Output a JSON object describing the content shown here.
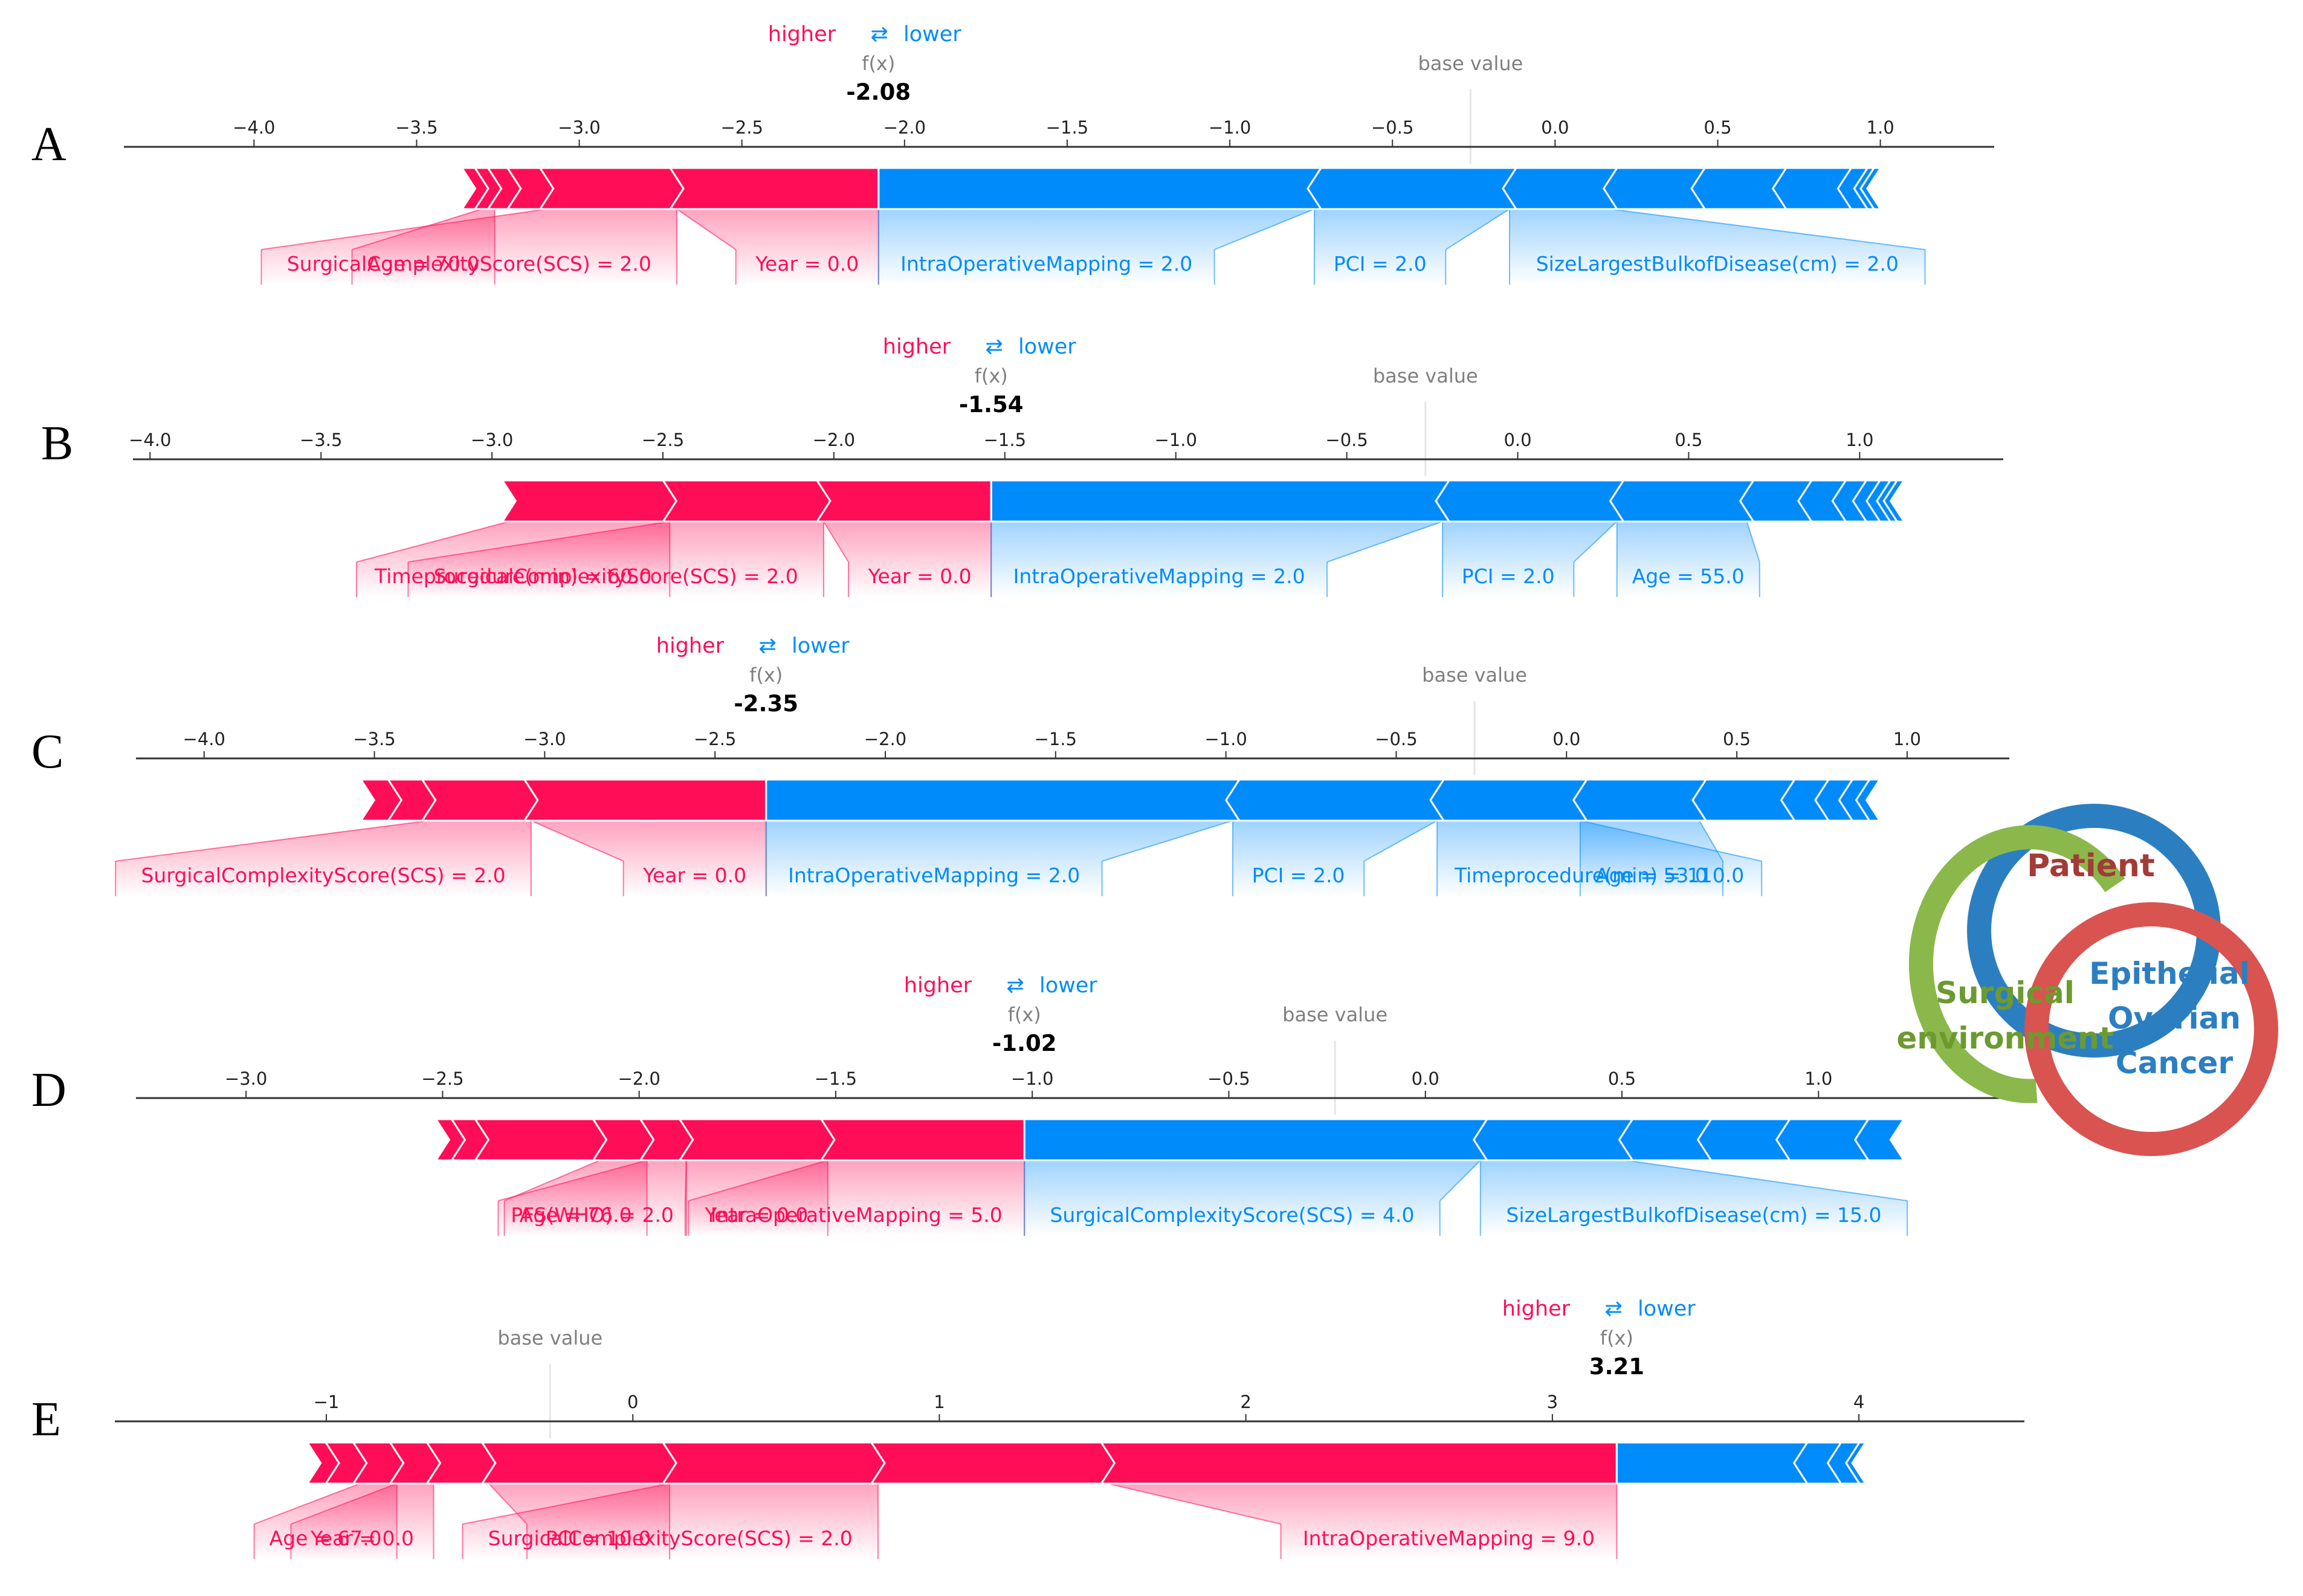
{
  "colors": {
    "higher": "#ff0d57",
    "lower": "#008bfb",
    "axis": "#333333",
    "muted": "#7f7f7f",
    "venn_patient": "#2b7fc1",
    "venn_surgical": "#8ab84a",
    "venn_cancer": "#d95350",
    "venn_patient_text": "#a33b37",
    "venn_surgical_text": "#6d9a2f",
    "venn_cancer_text": "#2b7fc1"
  },
  "legend": {
    "higher": "higher",
    "lower": "lower",
    "arrows": "⇄"
  },
  "labels": {
    "fx": "f(x)",
    "base_value": "base value"
  },
  "chart_data": [
    {
      "type": "force",
      "panel": "A",
      "fx_value": -2.08,
      "fx_text": "-2.08",
      "base_value": -0.26,
      "xlim": [
        -4.4,
        1.35
      ],
      "ticks": [
        -4.0,
        -3.5,
        -3.0,
        -2.5,
        -2.0,
        -1.5,
        -1.0,
        -0.5,
        0.0,
        0.5,
        1.0
      ],
      "tick_labels": [
        "−4.0",
        "−3.5",
        "−3.0",
        "−2.5",
        "−2.0",
        "−1.5",
        "−1.0",
        "−0.5",
        "0.0",
        "0.5",
        "1.0"
      ],
      "pos_breaks": [
        -3.34,
        -3.3,
        -3.26,
        -3.2,
        -3.1,
        -2.7,
        -2.08
      ],
      "neg_breaks": [
        -2.08,
        -0.74,
        -0.14,
        0.17,
        0.44,
        0.69,
        0.89,
        0.94,
        0.96,
        0.98
      ],
      "features": [
        {
          "label": "Age = 70.0",
          "side": "pos",
          "seg": [
            -3.3,
            -3.26
          ]
        },
        {
          "label": "SurgicalComplexityScore(SCS) = 2.0",
          "side": "pos",
          "seg": [
            -3.1,
            -2.7
          ]
        },
        {
          "label": "Year = 0.0",
          "side": "pos",
          "seg": [
            -2.7,
            -2.08
          ]
        },
        {
          "label": "IntraOperativeMapping = 2.0",
          "side": "neg",
          "seg": [
            -2.08,
            -0.74
          ]
        },
        {
          "label": "PCI = 2.0",
          "side": "neg",
          "seg": [
            -0.74,
            -0.14
          ]
        },
        {
          "label": "SizeLargestBulkofDisease(cm) = 2.0",
          "side": "neg",
          "seg": [
            -0.14,
            0.17
          ]
        }
      ]
    },
    {
      "type": "force",
      "panel": "B",
      "fx_value": -1.54,
      "fx_text": "-1.54",
      "base_value": -0.27,
      "xlim": [
        -4.05,
        1.42
      ],
      "ticks": [
        -4.0,
        -3.5,
        -3.0,
        -2.5,
        -2.0,
        -1.5,
        -1.0,
        -0.5,
        0.0,
        0.5,
        1.0
      ],
      "tick_labels": [
        "−4.0",
        "−3.5",
        "−3.0",
        "−2.5",
        "−2.0",
        "−1.5",
        "−1.0",
        "−0.5",
        "0.0",
        "0.5",
        "1.0"
      ],
      "pos_breaks": [
        -2.95,
        -2.48,
        -2.03,
        -1.54
      ],
      "neg_breaks": [
        -1.54,
        -0.22,
        0.29,
        0.67,
        0.84,
        0.94,
        1.0,
        1.04,
        1.07,
        1.09,
        1.11
      ],
      "features": [
        {
          "label": "Timeprocedure(min) = 60.0",
          "side": "pos",
          "seg": [
            -2.95,
            -2.48
          ]
        },
        {
          "label": "SurgicalComplexityScore(SCS) = 2.0",
          "side": "pos",
          "seg": [
            -2.48,
            -2.03
          ]
        },
        {
          "label": "Year = 0.0",
          "side": "pos",
          "seg": [
            -2.03,
            -1.54
          ]
        },
        {
          "label": "IntraOperativeMapping = 2.0",
          "side": "neg",
          "seg": [
            -1.54,
            -0.22
          ]
        },
        {
          "label": "PCI = 2.0",
          "side": "neg",
          "seg": [
            -0.22,
            0.29
          ]
        },
        {
          "label": "Age = 55.0",
          "side": "neg",
          "seg": [
            0.29,
            0.67
          ]
        }
      ]
    },
    {
      "type": "force",
      "panel": "C",
      "fx_value": -2.35,
      "fx_text": "-2.35",
      "base_value": -0.27,
      "xlim": [
        -4.2,
        1.3
      ],
      "ticks": [
        -4.0,
        -3.5,
        -3.0,
        -2.5,
        -2.0,
        -1.5,
        -1.0,
        -0.5,
        0.0,
        0.5,
        1.0
      ],
      "tick_labels": [
        "−4.0",
        "−3.5",
        "−3.0",
        "−2.5",
        "−2.0",
        "−1.5",
        "−1.0",
        "−0.5",
        "0.0",
        "0.5",
        "1.0"
      ],
      "pos_breaks": [
        -3.52,
        -3.44,
        -3.34,
        -3.04,
        -2.35
      ],
      "neg_breaks": [
        -2.35,
        -0.98,
        -0.38,
        0.04,
        0.39,
        0.65,
        0.75,
        0.82,
        0.87,
        0.9
      ],
      "features": [
        {
          "label": "SurgicalComplexityScore(SCS) = 2.0",
          "side": "pos",
          "seg": [
            -3.34,
            -3.04
          ]
        },
        {
          "label": "Year = 0.0",
          "side": "pos",
          "seg": [
            -3.04,
            -2.35
          ]
        },
        {
          "label": "IntraOperativeMapping = 2.0",
          "side": "neg",
          "seg": [
            -2.35,
            -0.98
          ]
        },
        {
          "label": "PCI = 2.0",
          "side": "neg",
          "seg": [
            -0.98,
            -0.38
          ]
        },
        {
          "label": "Timeprocedure(min) = 110.0",
          "side": "neg",
          "seg": [
            -0.38,
            0.04
          ]
        },
        {
          "label": "Age = 53.0",
          "side": "neg",
          "seg": [
            0.04,
            0.39
          ]
        }
      ]
    },
    {
      "type": "force",
      "panel": "D",
      "fx_value": -1.02,
      "fx_text": "-1.02",
      "base_value": -0.23,
      "xlim": [
        -3.28,
        1.47
      ],
      "ticks": [
        -3.0,
        -2.5,
        -2.0,
        -1.5,
        -1.0,
        -0.5,
        0.0,
        0.5,
        1.0
      ],
      "tick_labels": [
        "−3.0",
        "−2.5",
        "−2.0",
        "−1.5",
        "−1.0",
        "−0.5",
        "0.0",
        "0.5",
        "1.0"
      ],
      "pos_breaks": [
        -2.5,
        -2.46,
        -2.4,
        -2.1,
        -1.98,
        -1.88,
        -1.52,
        -1.02
      ],
      "neg_breaks": [
        -1.02,
        0.14,
        0.51,
        0.71,
        0.91,
        1.11,
        1.2
      ],
      "features": [
        {
          "label": "Age = 76.0",
          "side": "pos",
          "seg": [
            -2.1,
            -1.98
          ]
        },
        {
          "label": "PFS(WHO) = 2.0",
          "side": "pos",
          "seg": [
            -1.98,
            -1.88
          ]
        },
        {
          "label": "Year = 0.0",
          "side": "pos",
          "seg": [
            -1.88,
            -1.52
          ]
        },
        {
          "label": "IntraOperativeMapping = 5.0",
          "side": "pos",
          "seg": [
            -1.52,
            -1.02
          ]
        },
        {
          "label": "SurgicalComplexityScore(SCS) = 4.0",
          "side": "neg",
          "seg": [
            -1.02,
            0.14
          ]
        },
        {
          "label": "SizeLargestBulkofDisease(cm) = 15.0",
          "side": "neg",
          "seg": [
            0.14,
            0.51
          ]
        }
      ]
    },
    {
      "type": "force",
      "panel": "E",
      "fx_value": 3.21,
      "fx_text": "3.21",
      "base_value": -0.27,
      "xlim": [
        -1.69,
        4.54
      ],
      "ticks": [
        -1,
        0,
        1,
        2,
        3,
        4
      ],
      "tick_labels": [
        "−1",
        "0",
        "1",
        "2",
        "3",
        "4"
      ],
      "pos_breaks": [
        -1.04,
        -0.98,
        -0.89,
        -0.77,
        -0.65,
        -0.47,
        0.12,
        0.8,
        1.55,
        3.21
      ],
      "neg_breaks": [
        3.21,
        3.81,
        3.92,
        3.98,
        4.0
      ],
      "features": [
        {
          "label": "Age = 67.0",
          "side": "pos",
          "seg": [
            -0.89,
            -0.77
          ]
        },
        {
          "label": "Year = 0.0",
          "side": "pos",
          "seg": [
            -0.77,
            -0.65
          ]
        },
        {
          "label": "PCI = 10.0",
          "side": "pos",
          "seg": [
            -0.47,
            0.12
          ]
        },
        {
          "label": "SurgicalComplexityScore(SCS) = 2.0",
          "side": "pos",
          "seg": [
            0.12,
            0.8
          ]
        },
        {
          "label": "IntraOperativeMapping = 9.0",
          "side": "pos",
          "seg": [
            1.55,
            3.21
          ]
        }
      ]
    }
  ],
  "venn": {
    "patient": "Patient",
    "surgical_line1": "Surgical",
    "surgical_line2": "environment",
    "cancer_line1": "Epithelial",
    "cancer_line2": "Ovarian",
    "cancer_line3": "Cancer"
  }
}
